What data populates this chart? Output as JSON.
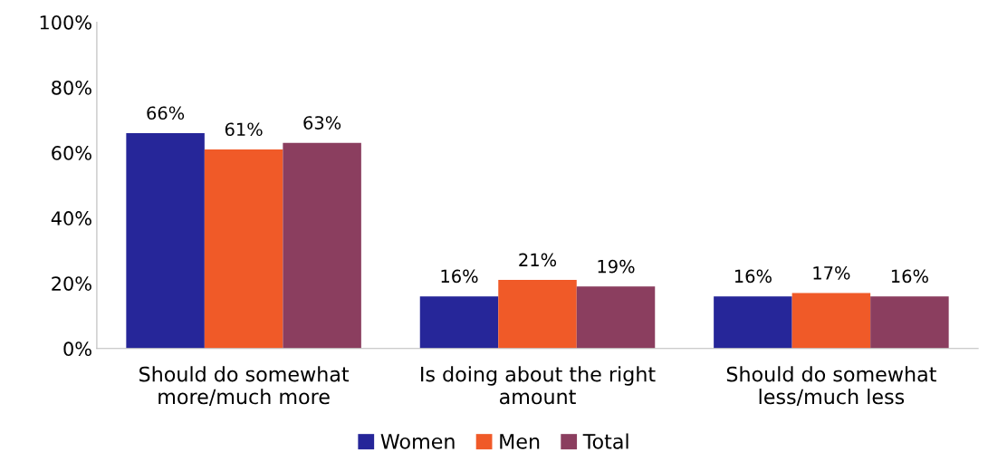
{
  "chart_data": {
    "type": "bar",
    "categories": [
      "Should do somewhat more/much more",
      "Is doing about the right amount",
      "Should do somewhat less/much less"
    ],
    "series": [
      {
        "name": "Women",
        "color": "#262699",
        "values": [
          66,
          16,
          16
        ],
        "value_labels": [
          "66%",
          "16%",
          "16%"
        ]
      },
      {
        "name": "Men",
        "color": "#f05a28",
        "values": [
          61,
          21,
          17
        ],
        "value_labels": [
          "61%",
          "21%",
          "17%"
        ]
      },
      {
        "name": "Total",
        "color": "#8b3e5f",
        "values": [
          63,
          19,
          16
        ],
        "value_labels": [
          "63%",
          "19%",
          "16%"
        ]
      }
    ],
    "ylim": [
      0,
      100
    ],
    "yticks": [
      {
        "value": 0,
        "label": "0%"
      },
      {
        "value": 20,
        "label": "20%"
      },
      {
        "value": 40,
        "label": "40%"
      },
      {
        "value": 60,
        "label": "60%"
      },
      {
        "value": 80,
        "label": "80%"
      },
      {
        "value": 100,
        "label": "100%"
      }
    ],
    "grid": false,
    "legend": "bottom"
  }
}
